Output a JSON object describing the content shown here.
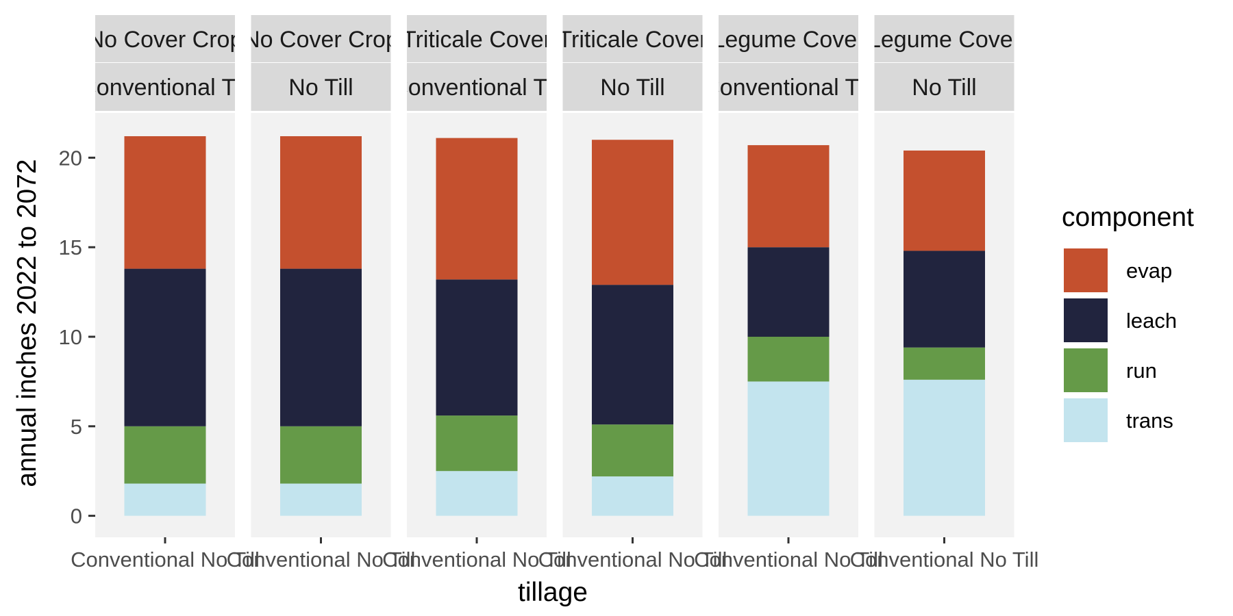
{
  "chart_data": {
    "type": "bar",
    "stacked": true,
    "xlabel": "tillage",
    "ylabel": "annual inches 2022 to 2072",
    "ylim": [
      -1.2,
      22.5
    ],
    "yticks": [
      0,
      5,
      10,
      15,
      20
    ],
    "grid": false,
    "legend": {
      "title": "component",
      "position": "right",
      "entries": [
        "evap",
        "leach",
        "run",
        "trans"
      ]
    },
    "colors": {
      "evap": "#c4502e",
      "leach": "#21243e",
      "run": "#659a48",
      "trans": "#c3e4ee"
    },
    "stack_order": [
      "trans",
      "run",
      "leach",
      "evap"
    ],
    "facets": [
      {
        "strip_top": "No Cover Crop",
        "strip_bottom": "Conventional Till",
        "x_label": "Conventional No Till",
        "values": {
          "trans": 1.8,
          "run": 3.2,
          "leach": 8.8,
          "evap": 7.4
        }
      },
      {
        "strip_top": "No Cover Crop",
        "strip_bottom": "No Till",
        "x_label": "Conventional No Till",
        "values": {
          "trans": 1.8,
          "run": 3.2,
          "leach": 8.8,
          "evap": 7.4
        }
      },
      {
        "strip_top": "Triticale Cover",
        "strip_bottom": "Conventional Till",
        "x_label": "Conventional No Till",
        "values": {
          "trans": 2.5,
          "run": 3.1,
          "leach": 7.6,
          "evap": 7.9
        }
      },
      {
        "strip_top": "Triticale Cover",
        "strip_bottom": "No Till",
        "x_label": "Conventional No Till",
        "values": {
          "trans": 2.2,
          "run": 2.9,
          "leach": 7.8,
          "evap": 8.1
        }
      },
      {
        "strip_top": "Legume Cover",
        "strip_bottom": "Conventional Till",
        "x_label": "Conventional No Till",
        "values": {
          "trans": 7.5,
          "run": 2.5,
          "leach": 5.0,
          "evap": 5.7
        }
      },
      {
        "strip_top": "Legume Cover",
        "strip_bottom": "No Till",
        "x_label": "Conventional No Till",
        "values": {
          "trans": 7.6,
          "run": 1.8,
          "leach": 5.4,
          "evap": 5.6
        }
      }
    ]
  }
}
